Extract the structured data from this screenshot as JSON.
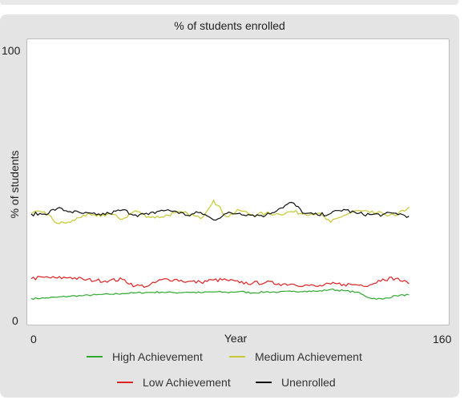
{
  "chart_data": {
    "type": "line",
    "title": "% of students enrolled",
    "xlabel": "Year",
    "ylabel": "% of students",
    "xlim": [
      0,
      160
    ],
    "ylim": [
      0,
      100
    ],
    "x_ticks": [
      "0",
      "160"
    ],
    "y_ticks": [
      "0",
      "100"
    ],
    "grid": false,
    "legend_position": "bottom",
    "x": [
      0,
      5,
      10,
      15,
      20,
      25,
      30,
      35,
      40,
      45,
      50,
      55,
      60,
      65,
      70,
      75,
      80,
      85,
      90,
      95,
      100,
      105,
      110,
      115,
      120,
      125,
      130,
      135,
      140,
      145
    ],
    "series": [
      {
        "name": "High Achievement",
        "color": "#2eaa2e",
        "values": [
          7,
          7.2,
          7.5,
          7.9,
          8.1,
          8.4,
          8.6,
          8.9,
          9.1,
          9.3,
          9.4,
          9.2,
          9.4,
          9.2,
          9.5,
          9.3,
          9.6,
          9.1,
          9.5,
          9.4,
          9.6,
          9.8,
          9.7,
          10.4,
          9.9,
          9.4,
          7.2,
          6.8,
          8.1,
          8.4
        ]
      },
      {
        "name": "Medium Achievement",
        "color": "#c8c832",
        "values": [
          38.5,
          39.3,
          34.9,
          35.3,
          38.0,
          37.6,
          38.5,
          36.5,
          39.6,
          37.4,
          37.3,
          38.8,
          38.6,
          36.7,
          43.5,
          37.4,
          39.8,
          38.1,
          38.6,
          38.4,
          39.3,
          38.5,
          38.7,
          35.3,
          37.9,
          39.6,
          38.9,
          38.5,
          37.7,
          41.0
        ]
      },
      {
        "name": "Low Achievement",
        "color": "#dd2222",
        "values": [
          14.4,
          14.9,
          14.6,
          14.9,
          14.1,
          13.7,
          13.7,
          14.1,
          11.7,
          11.7,
          14.0,
          14.1,
          13.3,
          13.1,
          13.9,
          13.9,
          12.9,
          12.7,
          13.0,
          12.5,
          12.4,
          12.0,
          11.5,
          12.4,
          12.3,
          12.1,
          12.1,
          14.3,
          14.5,
          12.5
        ]
      },
      {
        "name": "Unenrolled",
        "color": "#111111",
        "values": [
          38.4,
          38.4,
          40.5,
          39.3,
          38.6,
          38.1,
          38.6,
          39.9,
          38.1,
          38.2,
          39.8,
          39.5,
          37.9,
          39.0,
          36.2,
          38.6,
          38.7,
          38.0,
          37.9,
          40.3,
          42.7,
          38.6,
          38.0,
          38.6,
          40.1,
          38.6,
          38.2,
          38.2,
          38.7,
          37.6
        ]
      }
    ]
  }
}
